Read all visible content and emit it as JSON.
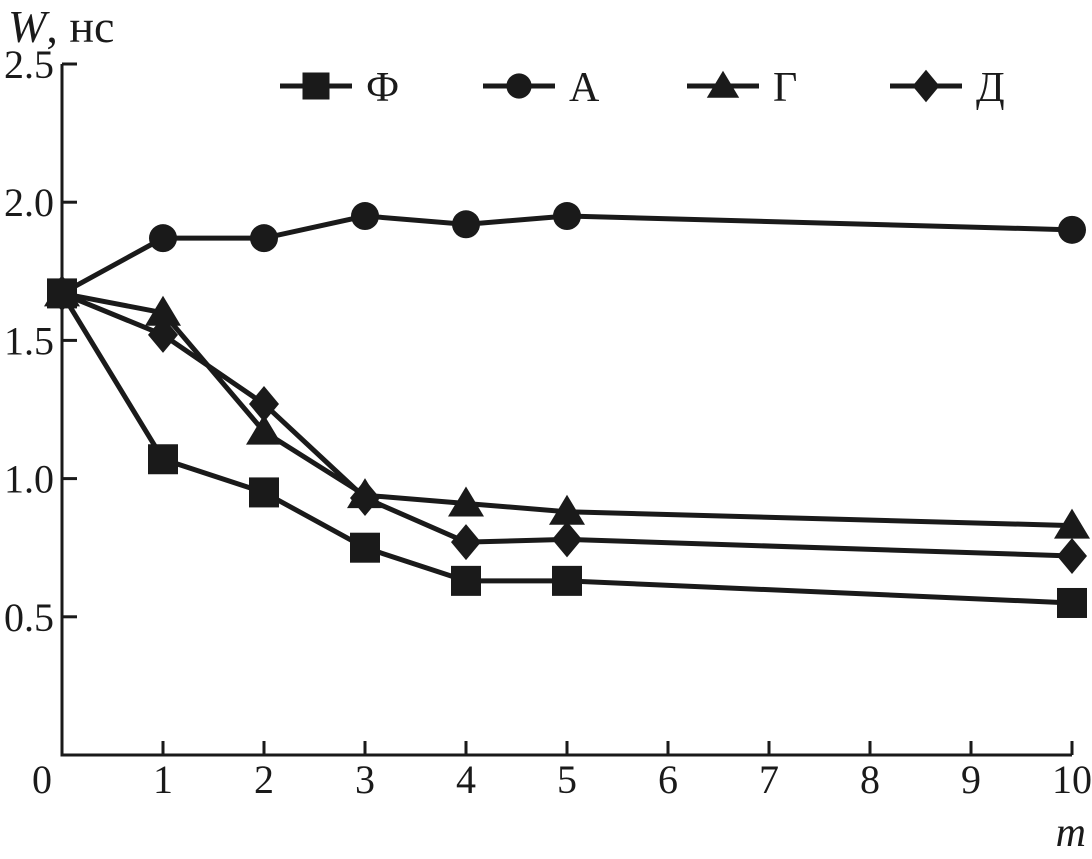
{
  "figure": {
    "ylabel_italic": "W",
    "ylabel_suffix": ", нс",
    "xlabel": "m"
  },
  "chart_data": {
    "type": "line",
    "title": "",
    "xlabel": "m",
    "ylabel": "W, нс",
    "xlim": [
      0,
      10
    ],
    "ylim": [
      0,
      2.5
    ],
    "grid": false,
    "legend_position": "top",
    "color": "#1a1a1a",
    "background": "#ffffff",
    "x": [
      0,
      1,
      2,
      3,
      4,
      5,
      10
    ],
    "series": [
      {
        "name": "Ф",
        "marker": "square",
        "values": [
          1.67,
          1.07,
          0.95,
          0.75,
          0.63,
          0.63,
          0.55
        ]
      },
      {
        "name": "А",
        "marker": "circle",
        "values": [
          1.67,
          1.87,
          1.87,
          1.95,
          1.92,
          1.95,
          1.9
        ]
      },
      {
        "name": "Г",
        "marker": "triangle",
        "values": [
          1.67,
          1.6,
          1.17,
          0.94,
          0.91,
          0.88,
          0.83
        ]
      },
      {
        "name": "Д",
        "marker": "diamond",
        "values": [
          1.67,
          1.52,
          1.27,
          0.93,
          0.77,
          0.78,
          0.72
        ]
      }
    ],
    "x_ticks": [
      0,
      1,
      2,
      3,
      4,
      5,
      6,
      7,
      8,
      9,
      10
    ],
    "x_tick_labels": [
      "0",
      "1",
      "2",
      "3",
      "4",
      "5",
      "6",
      "7",
      "8",
      "9",
      "10"
    ],
    "y_ticks": [
      0.5,
      1.0,
      1.5,
      2.0,
      2.5
    ],
    "y_tick_labels": [
      "0.5",
      "1.0",
      "1.5",
      "2.0",
      "2.5"
    ]
  }
}
